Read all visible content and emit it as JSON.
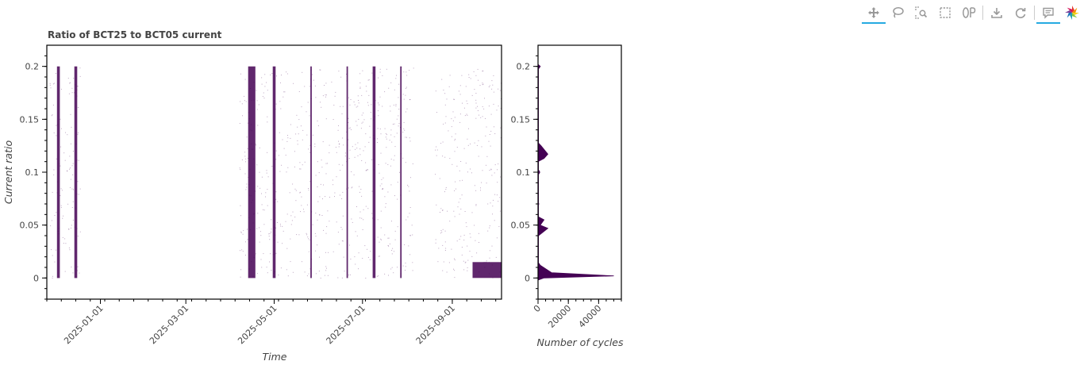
{
  "toolbar": {
    "tools": [
      {
        "name": "pan-tool",
        "icon": "move-icon",
        "active": true
      },
      {
        "name": "lasso-select-tool",
        "icon": "lasso-icon",
        "active": false
      },
      {
        "name": "box-zoom-tool",
        "icon": "box-zoom-icon",
        "active": false
      },
      {
        "name": "box-select-tool",
        "icon": "box-select-icon",
        "active": false
      },
      {
        "name": "wheel-zoom-tool",
        "icon": "wheel-zoom-icon",
        "active": false
      },
      {
        "name": "save-tool",
        "icon": "download-icon",
        "active": false
      },
      {
        "name": "reset-tool",
        "icon": "reset-icon",
        "active": false
      },
      {
        "name": "hover-tool",
        "icon": "comment-icon",
        "active": true
      },
      {
        "name": "bokeh-logo",
        "icon": "bokeh-logo-icon",
        "active": false
      }
    ]
  },
  "chart_data": [
    {
      "type": "scatter",
      "title": "Ratio of BCT25 to BCT05 current",
      "xlabel": "Time",
      "ylabel": "Current ratio",
      "x_ticks": [
        "2025-01-01",
        "2025-03-01",
        "2025-05-01",
        "2025-07-01",
        "2025-09-01"
      ],
      "y_ticks": [
        "0",
        "0.05",
        "0.1",
        "0.15",
        "0.2"
      ],
      "xlim": [
        "2024-11-25",
        "2025-10-05"
      ],
      "ylim": [
        -0.02,
        0.22
      ],
      "grid": false,
      "mark_color": "#440154",
      "dense_bands": [
        {
          "start": "2024-12-02",
          "end": "2024-12-04",
          "y_min": 0.0,
          "y_max": 0.2
        },
        {
          "start": "2024-12-14",
          "end": "2024-12-16",
          "y_min": 0.0,
          "y_max": 0.2
        },
        {
          "start": "2025-04-13",
          "end": "2025-04-18",
          "y_min": 0.0,
          "y_max": 0.2
        },
        {
          "start": "2025-04-30",
          "end": "2025-05-02",
          "y_min": 0.0,
          "y_max": 0.2
        },
        {
          "start": "2025-05-26",
          "end": "2025-05-27",
          "y_min": 0.0,
          "y_max": 0.2
        },
        {
          "start": "2025-06-20",
          "end": "2025-06-21",
          "y_min": 0.0,
          "y_max": 0.2
        },
        {
          "start": "2025-07-08",
          "end": "2025-07-10",
          "y_min": 0.0,
          "y_max": 0.2
        },
        {
          "start": "2025-07-27",
          "end": "2025-07-28",
          "y_min": 0.0,
          "y_max": 0.2
        },
        {
          "start": "2025-09-15",
          "end": "2025-10-05",
          "y_min": 0.0,
          "y_max": 0.015
        }
      ]
    },
    {
      "type": "area",
      "orientation": "horizontal",
      "xlabel": "Number of cycles",
      "ylabel": "",
      "x_ticks": [
        "0",
        "20000",
        "40000"
      ],
      "y_ticks": [
        "0",
        "0.05",
        "0.1",
        "0.15",
        "0.2"
      ],
      "xlim": [
        0,
        55000
      ],
      "ylim": [
        -0.02,
        0.22
      ],
      "mark_color": "#440154",
      "bins": [
        {
          "y": 0.0,
          "count": 4000
        },
        {
          "y": 0.002,
          "count": 50000
        },
        {
          "y": 0.005,
          "count": 9000
        },
        {
          "y": 0.012,
          "count": 1500
        },
        {
          "y": 0.04,
          "count": 300
        },
        {
          "y": 0.047,
          "count": 6500
        },
        {
          "y": 0.05,
          "count": 1500
        },
        {
          "y": 0.055,
          "count": 4000
        },
        {
          "y": 0.07,
          "count": 500
        },
        {
          "y": 0.1,
          "count": 1200
        },
        {
          "y": 0.113,
          "count": 4000
        },
        {
          "y": 0.117,
          "count": 6500
        },
        {
          "y": 0.125,
          "count": 2000
        },
        {
          "y": 0.14,
          "count": 200
        },
        {
          "y": 0.2,
          "count": 1500
        }
      ]
    }
  ]
}
